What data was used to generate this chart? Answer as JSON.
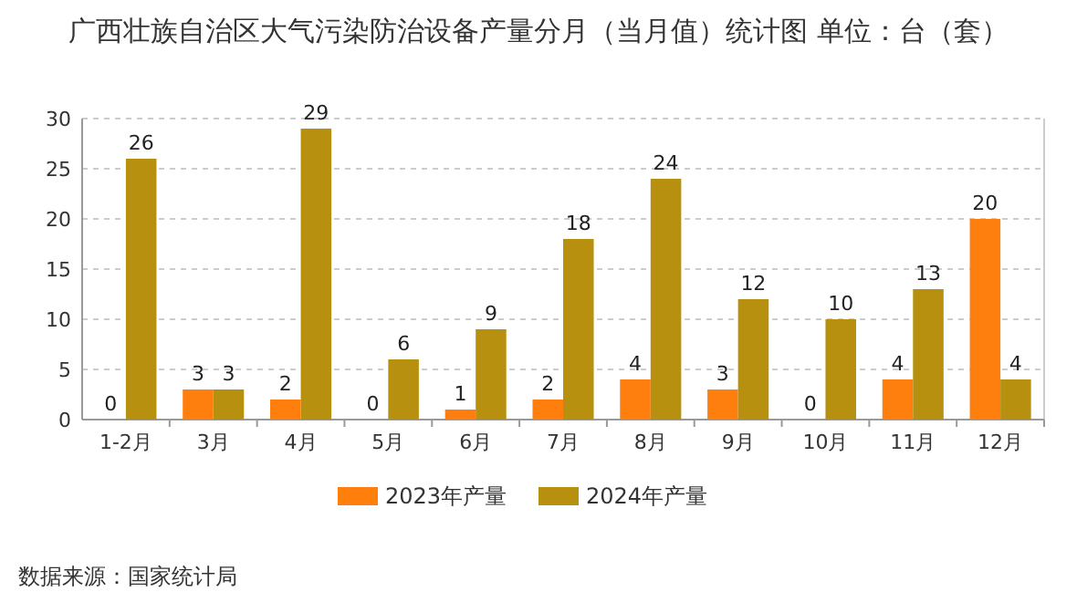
{
  "chart_data": {
    "type": "bar",
    "title": "广西壮族自治区大气污染防治设备产量分月（当月值）统计图 单位：台（套）",
    "categories": [
      "1-2月",
      "3月",
      "4月",
      "5月",
      "6月",
      "7月",
      "8月",
      "9月",
      "10月",
      "11月",
      "12月"
    ],
    "series": [
      {
        "name": "2023年产量",
        "color": "#ff7f0e",
        "values": [
          0,
          3,
          2,
          0,
          1,
          2,
          4,
          3,
          0,
          4,
          20
        ]
      },
      {
        "name": "2024年产量",
        "color": "#b8900f",
        "values": [
          26,
          3,
          29,
          6,
          9,
          18,
          24,
          12,
          10,
          13,
          4
        ]
      }
    ],
    "ylim": [
      0,
      30
    ],
    "yticks": [
      0,
      5,
      10,
      15,
      20,
      25,
      30
    ],
    "grid": "y",
    "legend": "bottom",
    "data_labels": true,
    "annotations": [
      "数据来源：国家统计局"
    ]
  }
}
